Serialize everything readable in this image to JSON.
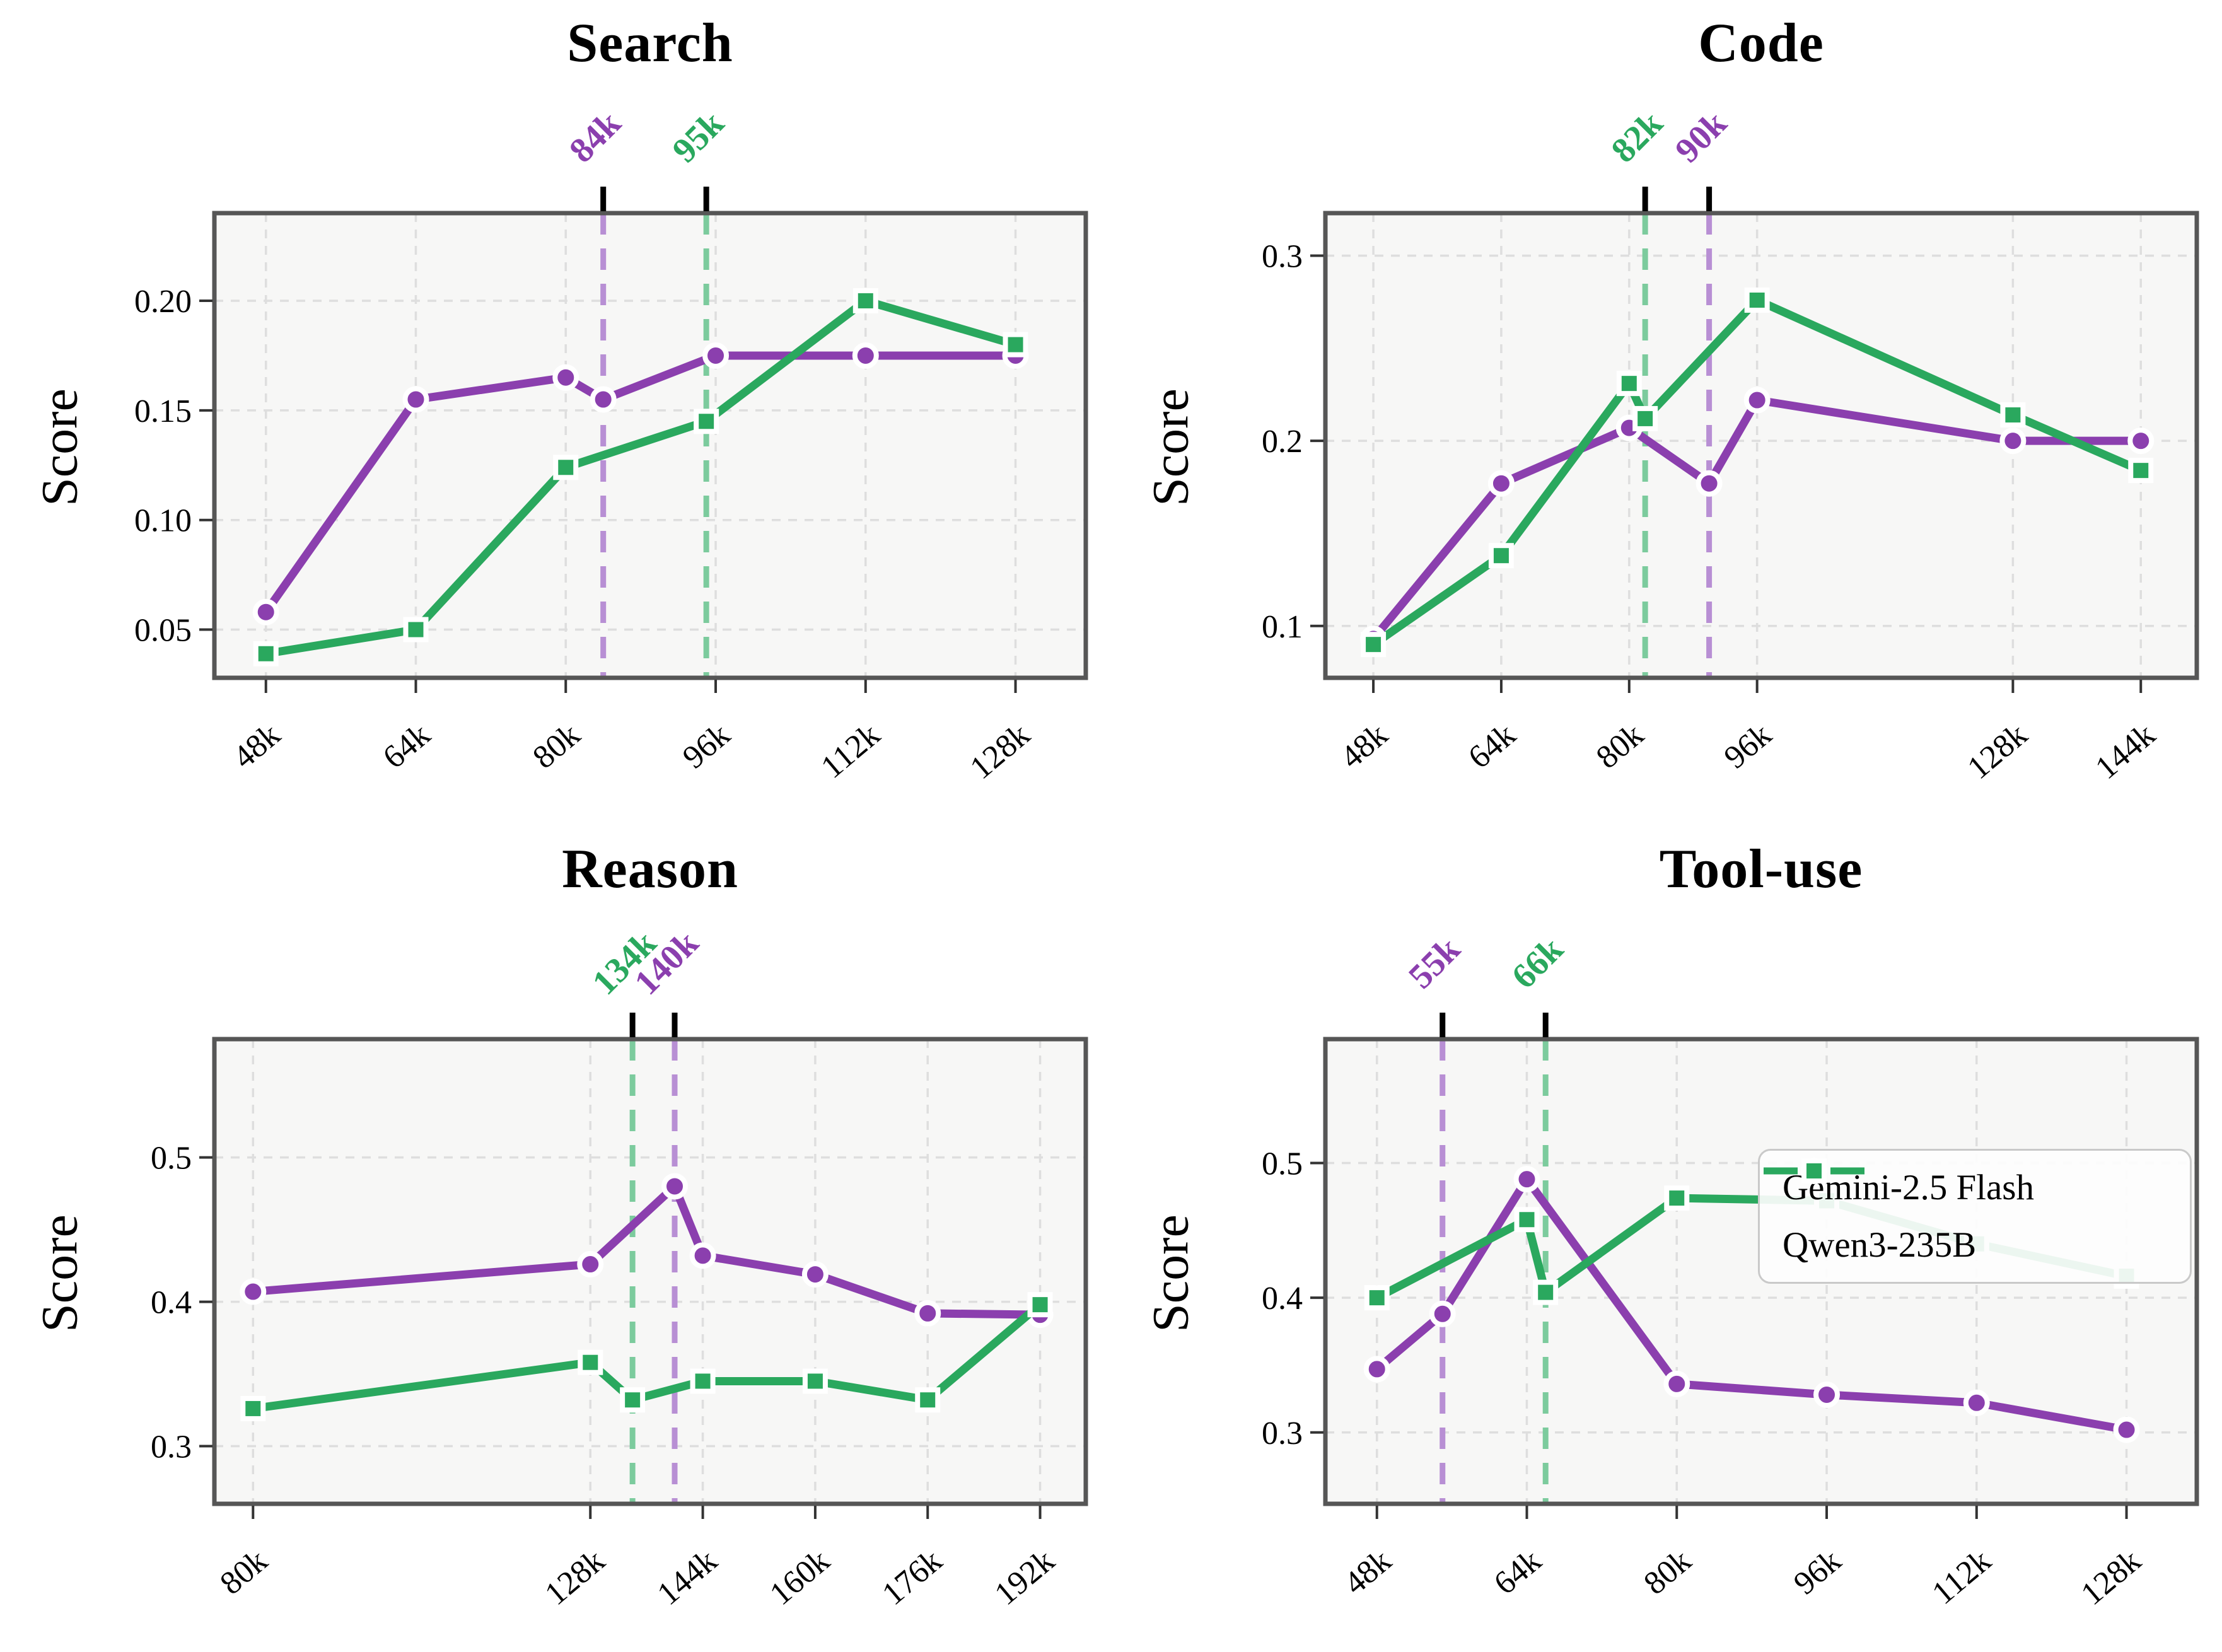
{
  "figure": {
    "background": "#ffffff",
    "plot_background": "#f7f7f6",
    "spine_color": "#565656",
    "grid_color": "#dedede",
    "tick_color": "#333333",
    "accent_purple": "#8b3fae",
    "accent_purple_light": "#b88fd4",
    "accent_green": "#2aa85e",
    "accent_green_light": "#7ccb9d"
  },
  "legend": {
    "items": [
      {
        "label": "Gemini-2.5 Flash",
        "color": "#8b3fae",
        "marker": "circle"
      },
      {
        "label": "Qwen3-235B",
        "color": "#2aa85e",
        "marker": "square"
      }
    ]
  },
  "chart_data": [
    {
      "type": "line",
      "title": "Search",
      "ylabel": "Score",
      "xlim": [
        42.5,
        135.5
      ],
      "ylim": [
        0.028,
        0.24
      ],
      "grid": true,
      "legend": false,
      "xticks": [
        {
          "v": 48,
          "label": "48k"
        },
        {
          "v": 64,
          "label": "64k"
        },
        {
          "v": 80,
          "label": "80k"
        },
        {
          "v": 96,
          "label": "96k"
        },
        {
          "v": 112,
          "label": "112k"
        },
        {
          "v": 128,
          "label": "128k"
        }
      ],
      "yticks": [
        {
          "v": 0.05,
          "label": "0.05"
        },
        {
          "v": 0.1,
          "label": "0.10"
        },
        {
          "v": 0.15,
          "label": "0.15"
        },
        {
          "v": 0.2,
          "label": "0.20"
        }
      ],
      "series": [
        {
          "name": "Gemini-2.5 Flash",
          "color": "#8b3fae",
          "marker": "circle",
          "points": [
            [
              48,
              0.058
            ],
            [
              64,
              0.155
            ],
            [
              80,
              0.165
            ],
            [
              84,
              0.155
            ],
            [
              96,
              0.175
            ],
            [
              112,
              0.175
            ],
            [
              128,
              0.175
            ]
          ]
        },
        {
          "name": "Qwen3-235B",
          "color": "#2aa85e",
          "marker": "square",
          "points": [
            [
              48,
              0.039
            ],
            [
              64,
              0.05
            ],
            [
              80,
              0.124
            ],
            [
              95,
              0.145
            ],
            [
              112,
              0.2
            ],
            [
              128,
              0.18
            ]
          ]
        }
      ],
      "vlines": [
        {
          "x": 84,
          "label": "84k",
          "color": "#8b3fae",
          "line_color": "#b88fd4"
        },
        {
          "x": 95,
          "label": "95k",
          "color": "#2aa85e",
          "line_color": "#7ccb9d"
        }
      ]
    },
    {
      "type": "line",
      "title": "Code",
      "ylabel": "Score",
      "xlim": [
        42,
        151
      ],
      "ylim": [
        0.072,
        0.323
      ],
      "grid": true,
      "legend": false,
      "xticks": [
        {
          "v": 48,
          "label": "48k"
        },
        {
          "v": 64,
          "label": "64k"
        },
        {
          "v": 80,
          "label": "80k"
        },
        {
          "v": 96,
          "label": "96k"
        },
        {
          "v": 128,
          "label": "128k"
        },
        {
          "v": 144,
          "label": "144k"
        }
      ],
      "yticks": [
        {
          "v": 0.1,
          "label": "0.1"
        },
        {
          "v": 0.2,
          "label": "0.2"
        },
        {
          "v": 0.3,
          "label": "0.3"
        }
      ],
      "series": [
        {
          "name": "Gemini-2.5 Flash",
          "color": "#8b3fae",
          "marker": "circle",
          "points": [
            [
              48,
              0.093
            ],
            [
              64,
              0.177
            ],
            [
              80,
              0.207
            ],
            [
              90,
              0.177
            ],
            [
              96,
              0.222
            ],
            [
              128,
              0.2
            ],
            [
              144,
              0.2
            ]
          ]
        },
        {
          "name": "Qwen3-235B",
          "color": "#2aa85e",
          "marker": "square",
          "points": [
            [
              48,
              0.09
            ],
            [
              64,
              0.138
            ],
            [
              80,
              0.231
            ],
            [
              82,
              0.212
            ],
            [
              96,
              0.276
            ],
            [
              128,
              0.214
            ],
            [
              144,
              0.184
            ]
          ]
        }
      ],
      "vlines": [
        {
          "x": 82,
          "label": "82k",
          "color": "#2aa85e",
          "line_color": "#7ccb9d"
        },
        {
          "x": 90,
          "label": "90k",
          "color": "#8b3fae",
          "line_color": "#b88fd4"
        }
      ]
    },
    {
      "type": "line",
      "title": "Reason",
      "ylabel": "Score",
      "xlim": [
        74.5,
        198.5
      ],
      "ylim": [
        0.26,
        0.582
      ],
      "grid": true,
      "legend": false,
      "xticks": [
        {
          "v": 80,
          "label": "80k"
        },
        {
          "v": 128,
          "label": "128k"
        },
        {
          "v": 144,
          "label": "144k"
        },
        {
          "v": 160,
          "label": "160k"
        },
        {
          "v": 176,
          "label": "176k"
        },
        {
          "v": 192,
          "label": "192k"
        }
      ],
      "yticks": [
        {
          "v": 0.3,
          "label": "0.3"
        },
        {
          "v": 0.4,
          "label": "0.4"
        },
        {
          "v": 0.5,
          "label": "0.5"
        }
      ],
      "series": [
        {
          "name": "Gemini-2.5 Flash",
          "color": "#8b3fae",
          "marker": "circle",
          "points": [
            [
              80,
              0.407
            ],
            [
              128,
              0.426
            ],
            [
              140,
              0.48
            ],
            [
              144,
              0.432
            ],
            [
              160,
              0.419
            ],
            [
              176,
              0.392
            ],
            [
              192,
              0.391
            ]
          ]
        },
        {
          "name": "Qwen3-235B",
          "color": "#2aa85e",
          "marker": "square",
          "points": [
            [
              80,
              0.326
            ],
            [
              128,
              0.358
            ],
            [
              134,
              0.332
            ],
            [
              144,
              0.345
            ],
            [
              160,
              0.345
            ],
            [
              176,
              0.332
            ],
            [
              192,
              0.398
            ]
          ]
        }
      ],
      "vlines": [
        {
          "x": 134,
          "label": "134k",
          "color": "#2aa85e",
          "line_color": "#7ccb9d"
        },
        {
          "x": 140,
          "label": "140k",
          "color": "#8b3fae",
          "line_color": "#b88fd4"
        }
      ]
    },
    {
      "type": "line",
      "title": "Tool-use",
      "ylabel": "Score",
      "xlim": [
        42.5,
        135.5
      ],
      "ylim": [
        0.247,
        0.592
      ],
      "grid": true,
      "legend": true,
      "xticks": [
        {
          "v": 48,
          "label": "48k"
        },
        {
          "v": 64,
          "label": "64k"
        },
        {
          "v": 80,
          "label": "80k"
        },
        {
          "v": 96,
          "label": "96k"
        },
        {
          "v": 112,
          "label": "112k"
        },
        {
          "v": 128,
          "label": "128k"
        }
      ],
      "yticks": [
        {
          "v": 0.3,
          "label": "0.3"
        },
        {
          "v": 0.4,
          "label": "0.4"
        },
        {
          "v": 0.5,
          "label": "0.5"
        }
      ],
      "series": [
        {
          "name": "Gemini-2.5 Flash",
          "color": "#8b3fae",
          "marker": "circle",
          "points": [
            [
              48,
              0.347
            ],
            [
              55,
              0.388
            ],
            [
              64,
              0.488
            ],
            [
              80,
              0.336
            ],
            [
              96,
              0.328
            ],
            [
              112,
              0.322
            ],
            [
              128,
              0.302
            ]
          ]
        },
        {
          "name": "Qwen3-235B",
          "color": "#2aa85e",
          "marker": "square",
          "points": [
            [
              48,
              0.4
            ],
            [
              64,
              0.458
            ],
            [
              66,
              0.404
            ],
            [
              80,
              0.474
            ],
            [
              96,
              0.472
            ],
            [
              112,
              0.44
            ],
            [
              128,
              0.416
            ]
          ]
        }
      ],
      "vlines": [
        {
          "x": 55,
          "label": "55k",
          "color": "#8b3fae",
          "line_color": "#b88fd4"
        },
        {
          "x": 66,
          "label": "66k",
          "color": "#2aa85e",
          "line_color": "#7ccb9d"
        }
      ]
    }
  ]
}
